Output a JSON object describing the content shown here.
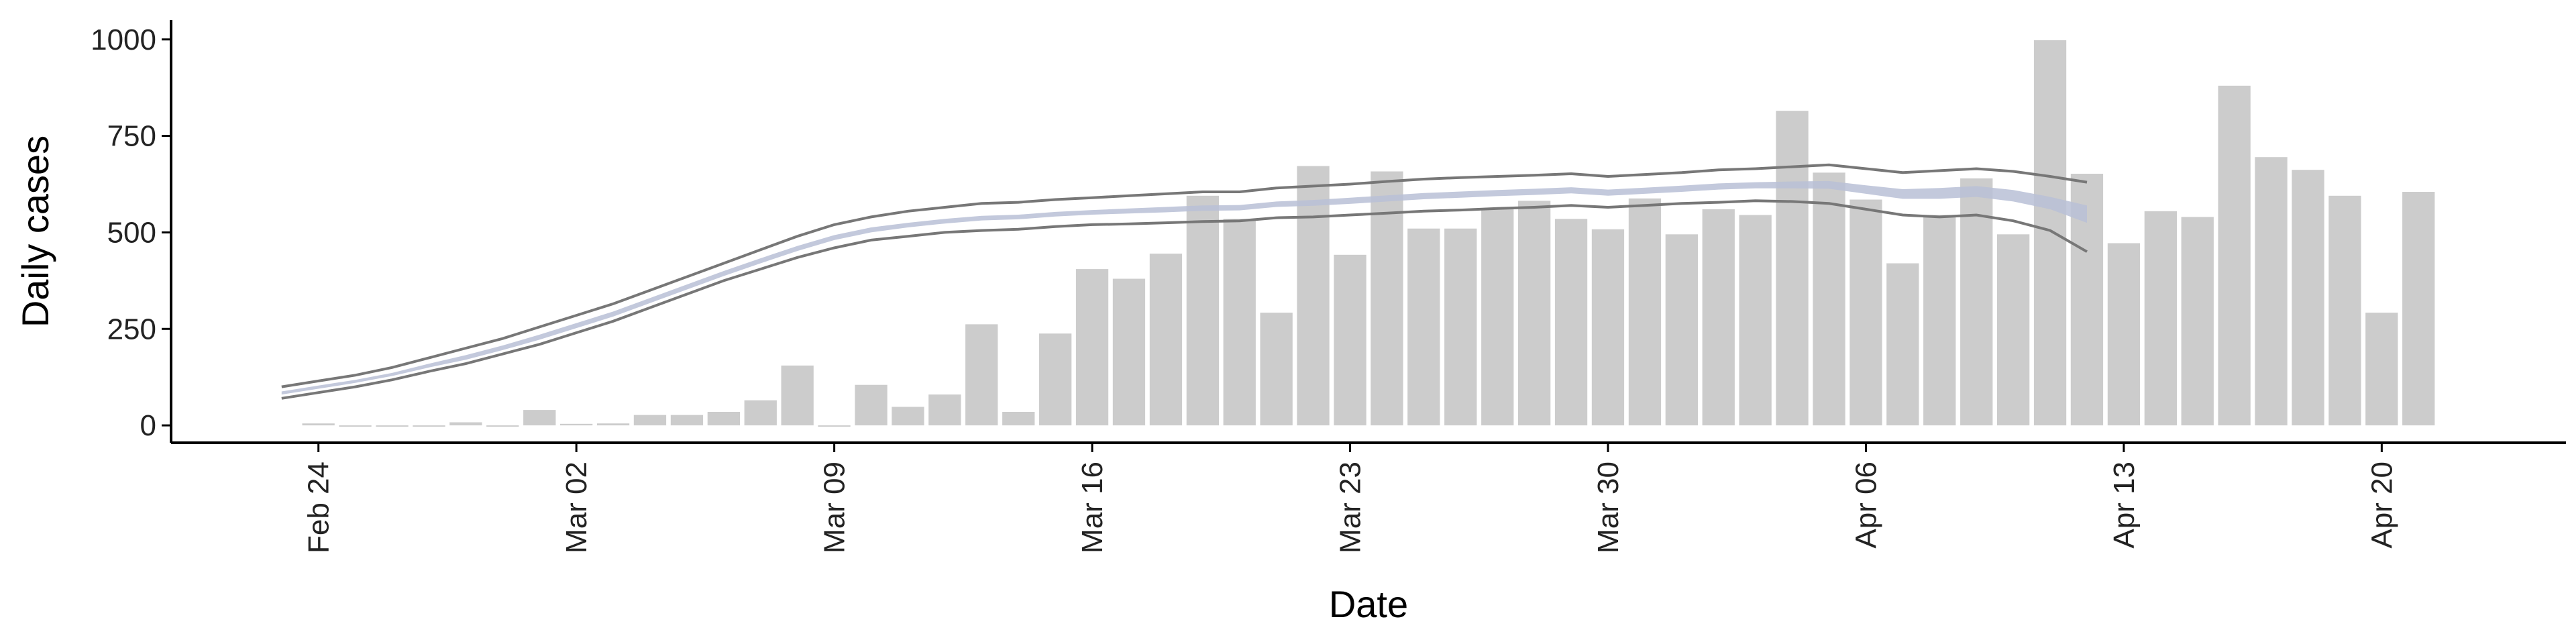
{
  "chart_data": {
    "type": "bar",
    "xlabel": "Date",
    "ylabel": "Daily cases",
    "ylim": [
      -45,
      1050
    ],
    "yticks": [
      0,
      250,
      500,
      750,
      1000
    ],
    "xticks": [
      {
        "date": "2020-02-24",
        "label": "Feb 24"
      },
      {
        "date": "2020-03-02",
        "label": "Mar 02"
      },
      {
        "date": "2020-03-09",
        "label": "Mar 09"
      },
      {
        "date": "2020-03-16",
        "label": "Mar 16"
      },
      {
        "date": "2020-03-23",
        "label": "Mar 23"
      },
      {
        "date": "2020-03-30",
        "label": "Mar 30"
      },
      {
        "date": "2020-04-06",
        "label": "Apr 06"
      },
      {
        "date": "2020-04-13",
        "label": "Apr 13"
      },
      {
        "date": "2020-04-20",
        "label": "Apr 20"
      }
    ],
    "xrange": [
      "2020-02-20",
      "2020-04-25"
    ],
    "grid": false,
    "bars": {
      "dates": [
        "2020-02-24",
        "2020-02-25",
        "2020-02-26",
        "2020-02-27",
        "2020-02-28",
        "2020-02-29",
        "2020-03-01",
        "2020-03-02",
        "2020-03-03",
        "2020-03-04",
        "2020-03-05",
        "2020-03-06",
        "2020-03-07",
        "2020-03-08",
        "2020-03-09",
        "2020-03-10",
        "2020-03-11",
        "2020-03-12",
        "2020-03-13",
        "2020-03-14",
        "2020-03-15",
        "2020-03-16",
        "2020-03-17",
        "2020-03-18",
        "2020-03-19",
        "2020-03-20",
        "2020-03-21",
        "2020-03-22",
        "2020-03-23",
        "2020-03-24",
        "2020-03-25",
        "2020-03-26",
        "2020-03-27",
        "2020-03-28",
        "2020-03-29",
        "2020-03-30",
        "2020-03-31",
        "2020-04-01",
        "2020-04-02",
        "2020-04-03",
        "2020-04-04",
        "2020-04-05",
        "2020-04-06",
        "2020-04-07",
        "2020-04-08",
        "2020-04-09",
        "2020-04-10",
        "2020-04-11",
        "2020-04-12",
        "2020-04-13",
        "2020-04-14",
        "2020-04-15",
        "2020-04-16",
        "2020-04-17",
        "2020-04-18",
        "2020-04-19",
        "2020-04-20",
        "2020-04-21"
      ],
      "values": [
        5,
        0,
        0,
        0,
        8,
        0,
        40,
        4,
        5,
        27,
        27,
        35,
        65,
        155,
        0,
        105,
        48,
        80,
        262,
        35,
        238,
        405,
        380,
        445,
        595,
        535,
        292,
        672,
        442,
        658,
        510,
        510,
        562,
        582,
        535,
        508,
        588,
        495,
        560,
        545,
        815,
        655,
        585,
        420,
        545,
        640,
        495,
        998,
        652,
        472,
        555,
        540,
        880,
        695,
        662,
        595,
        292,
        605
      ],
      "color": "#cccccc"
    },
    "estimate_series": {
      "dates": [
        "2020-02-23",
        "2020-02-24",
        "2020-02-25",
        "2020-02-26",
        "2020-02-27",
        "2020-02-28",
        "2020-02-29",
        "2020-03-01",
        "2020-03-02",
        "2020-03-03",
        "2020-03-04",
        "2020-03-05",
        "2020-03-06",
        "2020-03-07",
        "2020-03-08",
        "2020-03-09",
        "2020-03-10",
        "2020-03-11",
        "2020-03-12",
        "2020-03-13",
        "2020-03-14",
        "2020-03-15",
        "2020-03-16",
        "2020-03-17",
        "2020-03-18",
        "2020-03-19",
        "2020-03-20",
        "2020-03-21",
        "2020-03-22",
        "2020-03-23",
        "2020-03-24",
        "2020-03-25",
        "2020-03-26",
        "2020-03-27",
        "2020-03-28",
        "2020-03-29",
        "2020-03-30",
        "2020-03-31",
        "2020-04-01",
        "2020-04-02",
        "2020-04-03",
        "2020-04-04",
        "2020-04-05",
        "2020-04-06",
        "2020-04-07",
        "2020-04-08",
        "2020-04-09",
        "2020-04-10",
        "2020-04-11",
        "2020-04-12"
      ],
      "upper": [
        100,
        115,
        130,
        150,
        175,
        200,
        225,
        255,
        285,
        315,
        350,
        385,
        420,
        455,
        490,
        520,
        540,
        555,
        565,
        575,
        578,
        585,
        590,
        595,
        600,
        605,
        605,
        615,
        620,
        625,
        632,
        638,
        642,
        645,
        648,
        652,
        645,
        650,
        655,
        662,
        665,
        670,
        675,
        665,
        655,
        660,
        665,
        658,
        645,
        630
      ],
      "lower": [
        70,
        85,
        100,
        118,
        140,
        160,
        185,
        210,
        240,
        270,
        305,
        340,
        375,
        405,
        435,
        460,
        480,
        490,
        500,
        505,
        508,
        515,
        520,
        522,
        525,
        528,
        530,
        538,
        540,
        545,
        550,
        555,
        558,
        562,
        565,
        570,
        565,
        570,
        575,
        578,
        582,
        580,
        575,
        560,
        545,
        540,
        545,
        530,
        505,
        450
      ],
      "band_upper": [
        88,
        103,
        118,
        136,
        160,
        182,
        207,
        235,
        265,
        295,
        330,
        365,
        400,
        433,
        465,
        493,
        513,
        525,
        535,
        543,
        546,
        553,
        558,
        562,
        566,
        570,
        571,
        580,
        584,
        590,
        596,
        602,
        606,
        610,
        613,
        617,
        611,
        616,
        621,
        627,
        630,
        632,
        633,
        622,
        612,
        615,
        620,
        610,
        592,
        570
      ],
      "band_lower": [
        80,
        95,
        110,
        128,
        150,
        170,
        195,
        222,
        252,
        282,
        317,
        352,
        387,
        420,
        452,
        480,
        500,
        513,
        523,
        531,
        534,
        541,
        546,
        549,
        552,
        556,
        557,
        566,
        569,
        574,
        580,
        586,
        590,
        594,
        597,
        601,
        595,
        600,
        605,
        611,
        614,
        614,
        613,
        600,
        587,
        587,
        592,
        580,
        560,
        525
      ],
      "line_color": "#777777",
      "band_color": "#b8c0d6"
    }
  }
}
